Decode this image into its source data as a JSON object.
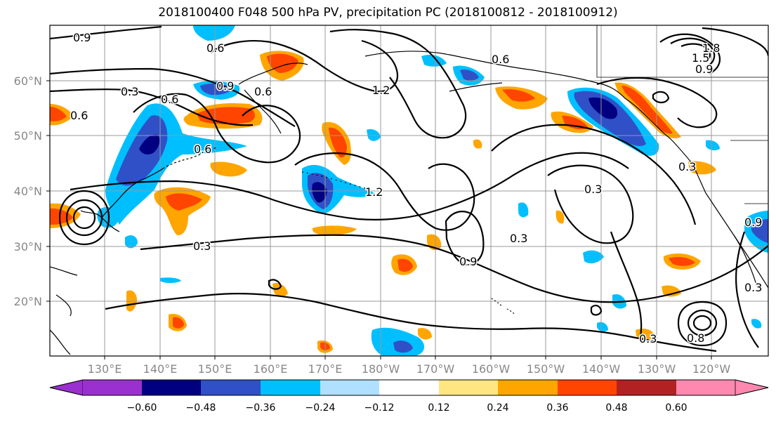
{
  "title": "2018100400 F048 500 hPa PV, precipitation PC (2018100812 - 2018100912)",
  "lat_labels": [
    "60°N",
    "50°N",
    "40°N",
    "30°N",
    "20°N"
  ],
  "lon_labels": [
    "130°E",
    "140°E",
    "150°E",
    "160°E",
    "170°E",
    "180°W",
    "170°W",
    "160°W",
    "150°W",
    "140°W",
    "130°W",
    "120°W"
  ],
  "colorbar": {
    "ticks": [
      "−0.60",
      "−0.48",
      "−0.36",
      "−0.24",
      "−0.12",
      "0.12",
      "0.24",
      "0.36",
      "0.48",
      "0.60"
    ],
    "colors": [
      "#9b30d0",
      "#000080",
      "#3050c8",
      "#00bfff",
      "#b0e0ff",
      "#ffffff",
      "#ffe680",
      "#ffa500",
      "#ff4500",
      "#b22222",
      "#ff88b0"
    ]
  },
  "contour_labels": [
    "0.9",
    "0.6",
    "0.3",
    "0.6",
    "0.6",
    "0.9",
    "0.6",
    "1.2",
    "0.6",
    "0.3",
    "0.3",
    "1.2",
    "0.9",
    "0.3",
    "0.3",
    "0.9",
    "0.3",
    "0.9",
    "0.3",
    "0.8",
    "0.6",
    "1.5",
    "1.8"
  ]
}
